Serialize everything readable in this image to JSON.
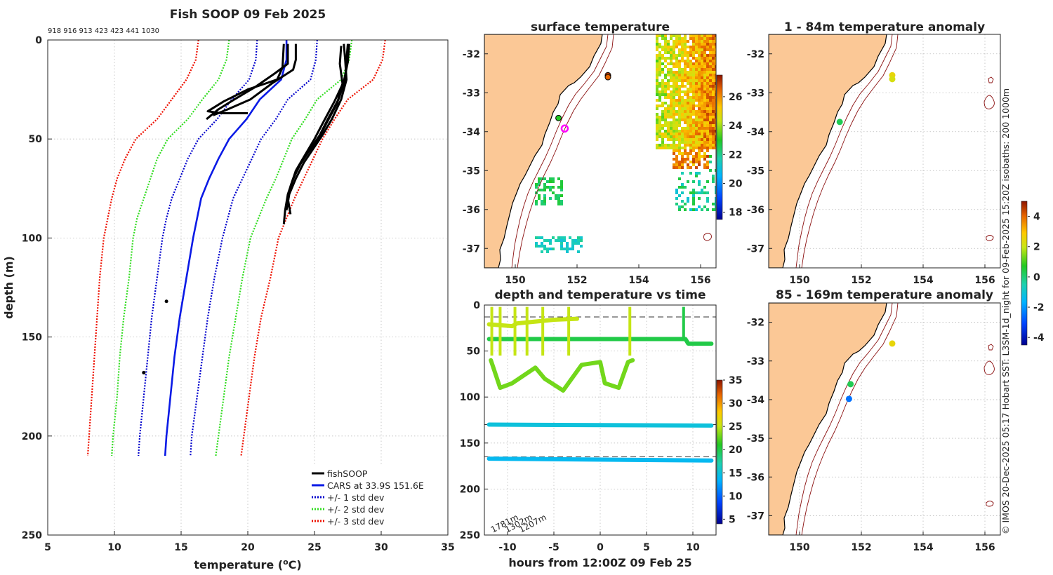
{
  "colors": {
    "land": "#fbc896",
    "fishsoop": "#000000",
    "cars": "#0a1ae6",
    "std1": "#0000cc",
    "std2": "#33dd22",
    "std3": "#ee1100",
    "magenta": "#ff00ff",
    "isobath": "#8b1010"
  },
  "copyright": "© IMOS 20-Dec-2025 05:17 Hobart SST: L3SM-1d_night for 09-Feb-2025 15:20Z isobaths: 200  1000m",
  "chart_data": [
    {
      "type": "line",
      "panel": "profile",
      "title": "Fish SOOP 09 Feb 2025",
      "subtitle": "918 916 913 423 423 441 1030",
      "xlabel": "temperature (°C)",
      "ylabel": "depth (m)",
      "xlim": [
        5,
        35
      ],
      "ylim": [
        250,
        0
      ],
      "xticks": [
        5,
        10,
        15,
        20,
        25,
        30,
        35
      ],
      "yticks": [
        0,
        50,
        100,
        150,
        200,
        250
      ],
      "legend_position": "bottom-right",
      "legend": [
        "fishSOOP",
        "CARS at 33.9S 151.6E",
        "+/- 1 std dev",
        "+/- 2 std dev",
        "+/- 3 std dev"
      ],
      "depths": [
        0,
        10,
        20,
        30,
        40,
        50,
        60,
        70,
        80,
        90,
        100,
        120,
        140,
        160,
        180,
        200,
        210
      ],
      "cars": [
        22.9,
        22.9,
        22.5,
        20.9,
        19.9,
        18.6,
        17.8,
        17.1,
        16.5,
        16.2,
        15.9,
        15.4,
        14.9,
        14.5,
        14.2,
        13.9,
        13.8
      ],
      "std1_minus": [
        20.7,
        20.6,
        20.1,
        18.8,
        17.7,
        16.3,
        15.5,
        14.9,
        14.3,
        13.9,
        13.6,
        13.2,
        12.8,
        12.5,
        12.2,
        11.9,
        11.8
      ],
      "std1_plus": [
        25.2,
        25.1,
        24.7,
        23.0,
        22.1,
        21.0,
        20.3,
        19.6,
        18.9,
        18.5,
        18.1,
        17.5,
        17.0,
        16.6,
        16.2,
        15.8,
        15.7
      ],
      "std2_minus": [
        18.6,
        18.4,
        17.8,
        16.6,
        15.5,
        14.0,
        13.2,
        12.7,
        12.2,
        11.7,
        11.4,
        11.1,
        10.7,
        10.4,
        10.2,
        9.9,
        9.8
      ],
      "std2_plus": [
        27.8,
        27.6,
        27.0,
        25.2,
        24.3,
        23.3,
        22.7,
        22.1,
        21.4,
        20.8,
        20.2,
        19.6,
        19.1,
        18.6,
        18.2,
        17.8,
        17.6
      ],
      "std3_minus": [
        16.3,
        16.1,
        15.4,
        14.3,
        13.2,
        11.6,
        10.8,
        10.2,
        9.8,
        9.5,
        9.2,
        8.9,
        8.7,
        8.5,
        8.3,
        8.1,
        8.0
      ],
      "std3_plus": [
        30.3,
        30.1,
        29.4,
        27.5,
        26.5,
        25.6,
        24.9,
        24.2,
        23.5,
        22.9,
        22.3,
        21.7,
        21.0,
        20.5,
        20.1,
        19.7,
        19.5
      ],
      "fishsoop_profiles": [
        {
          "t": [
            23.6,
            23.6,
            23.4,
            21.8,
            20.2,
            18.5,
            17.4
          ],
          "d": [
            2,
            10,
            15,
            22,
            30,
            35,
            38
          ]
        },
        {
          "t": [
            23.0,
            23.0,
            22.0,
            20.5,
            19.0,
            17.8,
            16.9
          ],
          "d": [
            2,
            12,
            17,
            24,
            30,
            35,
            40
          ]
        },
        {
          "t": [
            22.7,
            22.6,
            22.2,
            20.0,
            18.2,
            17.0,
            18.0,
            20.0
          ],
          "d": [
            2,
            14,
            20,
            25,
            31,
            36,
            37,
            37
          ]
        },
        {
          "t": [
            27.5,
            27.4,
            27.3,
            26.8,
            26.0,
            25.4,
            24.7,
            24.0,
            23.4,
            23.0,
            22.8,
            22.7
          ],
          "d": [
            2,
            10,
            20,
            30,
            40,
            48,
            55,
            62,
            70,
            78,
            86,
            93
          ]
        },
        {
          "t": [
            27.2,
            27.3,
            27.4,
            27.0,
            26.3,
            25.6,
            24.9,
            24.2,
            23.6,
            23.1,
            22.9
          ],
          "d": [
            2,
            10,
            20,
            30,
            40,
            48,
            55,
            62,
            70,
            78,
            86
          ]
        },
        {
          "t": [
            27.0,
            26.9,
            27.1,
            26.7,
            25.9,
            25.3,
            24.5,
            23.8,
            23.3,
            23.0,
            23.2
          ],
          "d": [
            3,
            12,
            22,
            32,
            42,
            50,
            57,
            64,
            72,
            80,
            88
          ]
        },
        {
          "t": [
            27.6,
            27.5,
            27.2,
            26.5,
            25.7,
            25.0,
            24.3,
            23.6,
            23.2,
            23.0
          ],
          "d": [
            2,
            11,
            21,
            31,
            41,
            50,
            58,
            66,
            74,
            82
          ]
        }
      ],
      "isolated_points": [
        {
          "t": 13.9,
          "d": 132
        },
        {
          "t": 12.2,
          "d": 168
        }
      ]
    },
    {
      "type": "heatmap",
      "panel": "map-surface",
      "title": "surface temperature",
      "xticks": [
        "150",
        "152",
        "154",
        "156"
      ],
      "yticks": [
        "-32",
        "-33",
        "-34",
        "-35",
        "-36",
        "-37"
      ],
      "xlim": [
        149.0,
        156.5
      ],
      "ylim": [
        -37.5,
        -31.5
      ],
      "colorbar_ticks": [
        "18",
        "20",
        "22",
        "24",
        "26"
      ],
      "colorbar_range": [
        17.5,
        27.5
      ],
      "markers": [
        {
          "lon": 153.0,
          "lat": -32.55,
          "value": 27
        },
        {
          "lon": 153.0,
          "lat": -32.6,
          "value": 26.5
        },
        {
          "lon": 151.4,
          "lat": -33.65,
          "value": 23
        },
        {
          "lon": 151.6,
          "lat": -33.92,
          "value": null,
          "style": "magenta ring"
        }
      ]
    },
    {
      "type": "scatter",
      "panel": "depth-time",
      "title": "depth and temperature vs time",
      "xlabel": "hours from 12:00Z 09 Feb 25",
      "xticks": [
        "-10",
        "-5",
        "0",
        "5",
        "10"
      ],
      "yticks": [
        "0",
        "50",
        "100",
        "150",
        "200",
        "250"
      ],
      "xlim": [
        -12.5,
        12.5
      ],
      "ylim": [
        250,
        0
      ],
      "dashed_lines_depth": [
        13,
        130,
        165
      ],
      "bottom_depths": [
        "1781m",
        "1302m",
        "1207m"
      ],
      "colorbar_ticks": [
        "5",
        "10",
        "15",
        "20",
        "25",
        "30",
        "35"
      ],
      "colorbar_range": [
        4,
        35
      ],
      "series": [
        {
          "name": "fishSOOP 423",
          "x": [
            -12.0,
            -9.5,
            -9.0,
            -5.0,
            -2.5
          ],
          "y": [
            21,
            23,
            20,
            16,
            15
          ],
          "temp": 25
        },
        {
          "name": "fishSOOP 918",
          "x": [
            -12.0,
            -8.0,
            -4.0,
            0.0,
            4.0,
            8.0,
            9.2,
            9.5,
            12.0
          ],
          "y": [
            37,
            37,
            37,
            37,
            37,
            37,
            37,
            42,
            42
          ],
          "temp": 20
        },
        {
          "name": "fishSOOP 441",
          "x": [
            -11.8,
            -10.8,
            -9.5,
            -7.0,
            -6.0,
            -4.0,
            -2.0,
            0.0,
            0.5,
            2.0,
            3.0,
            3.5
          ],
          "y": [
            60,
            90,
            85,
            68,
            80,
            93,
            65,
            62,
            85,
            90,
            62,
            60
          ],
          "temp": 23
        },
        {
          "name": "fishSOOP 916",
          "x": [
            -12.0,
            12.0
          ],
          "y": [
            130,
            131
          ],
          "temp": 15
        },
        {
          "name": "fishSOOP 913",
          "x": [
            -12.0,
            12.0
          ],
          "y": [
            167,
            169
          ],
          "temp": 14
        }
      ]
    },
    {
      "type": "scatter",
      "panel": "map-anomaly-shallow",
      "title": "1 - 84m temperature anomaly",
      "xticks": [
        "150",
        "152",
        "154",
        "156"
      ],
      "yticks": [
        "-32",
        "-33",
        "-34",
        "-35",
        "-36",
        "-37"
      ],
      "xlim": [
        149.0,
        156.5
      ],
      "ylim": [
        -37.5,
        -31.5
      ],
      "points": [
        {
          "lon": 153.0,
          "lat": -32.55,
          "anomaly": 2.5
        },
        {
          "lon": 153.0,
          "lat": -32.65,
          "anomaly": 2.2
        },
        {
          "lon": 151.3,
          "lat": -33.75,
          "anomaly": 0.3
        }
      ]
    },
    {
      "type": "scatter",
      "panel": "map-anomaly-deep",
      "title": "85 - 169m temperature anomaly",
      "xticks": [
        "150",
        "152",
        "154",
        "156"
      ],
      "yticks": [
        "-32",
        "-33",
        "-34",
        "-35",
        "-36",
        "-37"
      ],
      "xlim": [
        149.0,
        156.5
      ],
      "ylim": [
        -37.5,
        -31.5
      ],
      "colorbar_ticks": [
        "-4",
        "-2",
        "0",
        "2",
        "4"
      ],
      "colorbar_range": [
        -4.5,
        5
      ],
      "points": [
        {
          "lon": 153.0,
          "lat": -32.55,
          "anomaly": 2.5
        },
        {
          "lon": 151.65,
          "lat": -33.6,
          "anomaly": 0.3
        },
        {
          "lon": 151.6,
          "lat": -33.98,
          "anomaly": -2.5
        }
      ]
    }
  ]
}
